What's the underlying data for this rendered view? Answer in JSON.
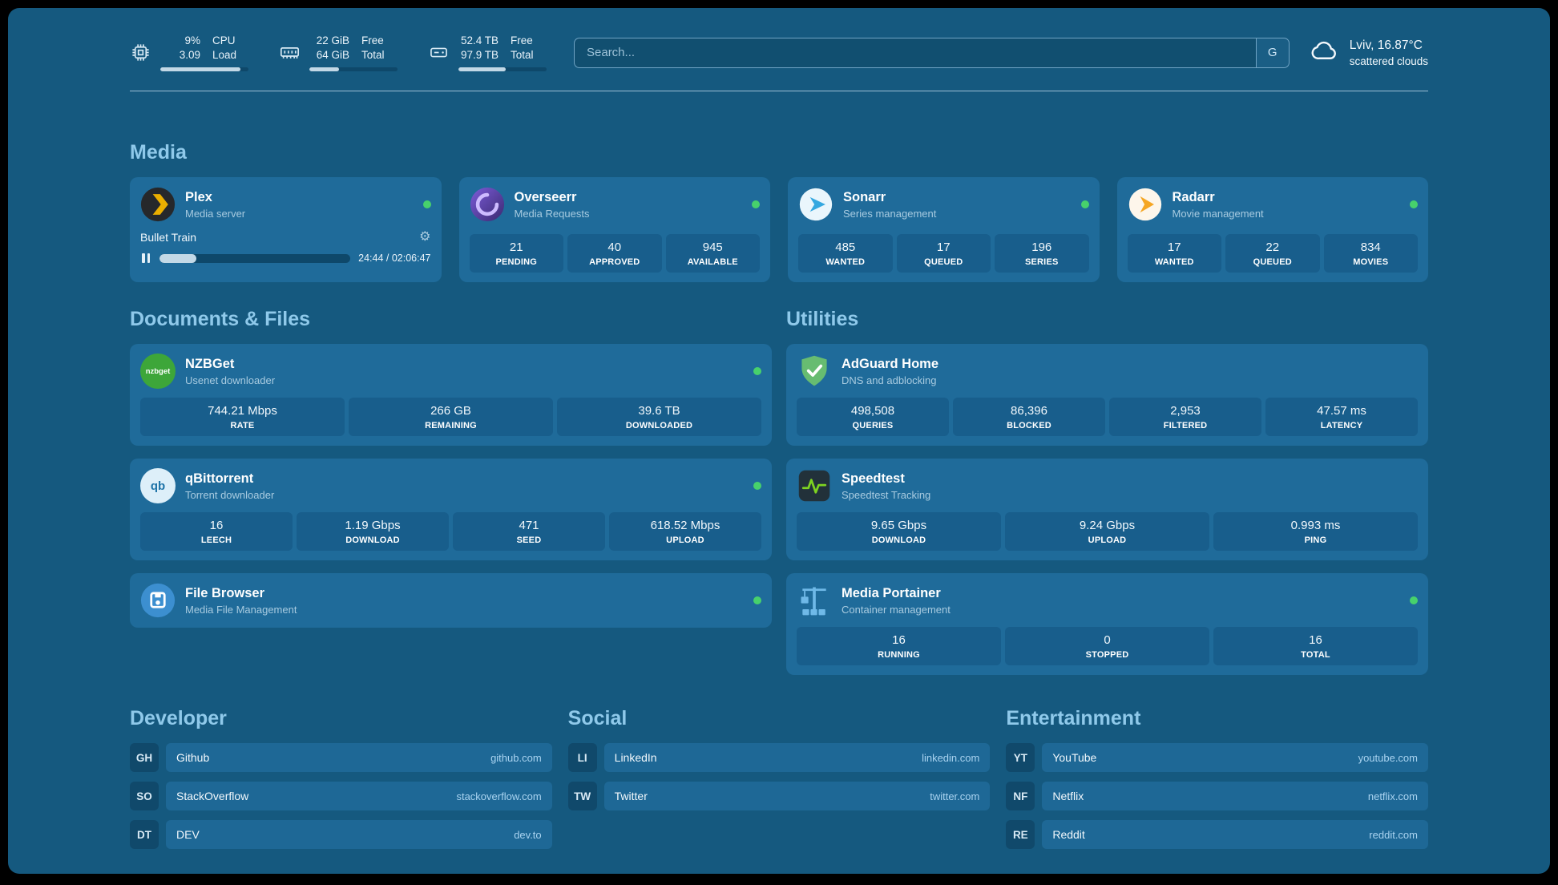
{
  "colors": {
    "background": "#15597F",
    "card": "#1F6B9A",
    "stat_box": "#185E8C",
    "status_online": "#47D16C",
    "section_heading": "#8FC9EA",
    "progress_fill": "#C3D9E7"
  },
  "icons": {
    "gear_glyph": "⚙"
  },
  "topbar": {
    "metrics": [
      {
        "icon": "cpu-chip-icon",
        "line1": "9%",
        "line2": "3.09",
        "label1": "CPU",
        "label2": "Load",
        "percent": 91
      },
      {
        "icon": "memory-icon",
        "line1": "22 GiB",
        "line2": "64 GiB",
        "label1": "Free",
        "label2": "Total",
        "percent": 34
      },
      {
        "icon": "disk-icon",
        "line1": "52.4 TB",
        "line2": "97.9 TB",
        "label1": "Free",
        "label2": "Total",
        "percent": 54
      }
    ],
    "search": {
      "placeholder": "Search...",
      "engine_label": "G"
    },
    "weather": {
      "location": "Lviv, 16.87°C",
      "condition": "scattered clouds"
    }
  },
  "media": {
    "heading": "Media",
    "plex": {
      "title": "Plex",
      "subtitle": "Media server",
      "now_playing": {
        "title": "Bullet Train",
        "time": "24:44 / 02:06:47",
        "progress_percent": 19.5
      }
    },
    "overseerr": {
      "title": "Overseerr",
      "subtitle": "Media Requests",
      "stats": [
        {
          "value": "21",
          "label": "PENDING"
        },
        {
          "value": "40",
          "label": "APPROVED"
        },
        {
          "value": "945",
          "label": "AVAILABLE"
        }
      ]
    },
    "sonarr": {
      "title": "Sonarr",
      "subtitle": "Series management",
      "stats": [
        {
          "value": "485",
          "label": "WANTED"
        },
        {
          "value": "17",
          "label": "QUEUED"
        },
        {
          "value": "196",
          "label": "SERIES"
        }
      ]
    },
    "radarr": {
      "title": "Radarr",
      "subtitle": "Movie management",
      "stats": [
        {
          "value": "17",
          "label": "WANTED"
        },
        {
          "value": "22",
          "label": "QUEUED"
        },
        {
          "value": "834",
          "label": "MOVIES"
        }
      ]
    }
  },
  "documents": {
    "heading": "Documents & Files",
    "nzbget": {
      "title": "NZBGet",
      "subtitle": "Usenet downloader",
      "icon_text": "nzbget",
      "stats": [
        {
          "value": "744.21 Mbps",
          "label": "RATE"
        },
        {
          "value": "266 GB",
          "label": "REMAINING"
        },
        {
          "value": "39.6 TB",
          "label": "DOWNLOADED"
        }
      ]
    },
    "qbittorrent": {
      "title": "qBittorrent",
      "subtitle": "Torrent downloader",
      "icon_text": "qb",
      "stats": [
        {
          "value": "16",
          "label": "LEECH"
        },
        {
          "value": "1.19 Gbps",
          "label": "DOWNLOAD"
        },
        {
          "value": "471",
          "label": "SEED"
        },
        {
          "value": "618.52 Mbps",
          "label": "UPLOAD"
        }
      ]
    },
    "filebrowser": {
      "title": "File Browser",
      "subtitle": "Media File Management"
    }
  },
  "utilities": {
    "heading": "Utilities",
    "adguard": {
      "title": "AdGuard Home",
      "subtitle": "DNS and adblocking",
      "stats": [
        {
          "value": "498,508",
          "label": "QUERIES"
        },
        {
          "value": "86,396",
          "label": "BLOCKED"
        },
        {
          "value": "2,953",
          "label": "FILTERED"
        },
        {
          "value": "47.57 ms",
          "label": "LATENCY"
        }
      ]
    },
    "speedtest": {
      "title": "Speedtest",
      "subtitle": "Speedtest Tracking",
      "stats": [
        {
          "value": "9.65 Gbps",
          "label": "DOWNLOAD"
        },
        {
          "value": "9.24 Gbps",
          "label": "UPLOAD"
        },
        {
          "value": "0.993 ms",
          "label": "PING"
        }
      ]
    },
    "portainer": {
      "title": "Media Portainer",
      "subtitle": "Container management",
      "stats": [
        {
          "value": "16",
          "label": "RUNNING"
        },
        {
          "value": "0",
          "label": "STOPPED"
        },
        {
          "value": "16",
          "label": "TOTAL"
        }
      ]
    }
  },
  "bookmarks": [
    {
      "heading": "Developer",
      "items": [
        {
          "abbr": "GH",
          "name": "Github",
          "domain": "github.com"
        },
        {
          "abbr": "SO",
          "name": "StackOverflow",
          "domain": "stackoverflow.com"
        },
        {
          "abbr": "DT",
          "name": "DEV",
          "domain": "dev.to"
        }
      ]
    },
    {
      "heading": "Social",
      "items": [
        {
          "abbr": "LI",
          "name": "LinkedIn",
          "domain": "linkedin.com"
        },
        {
          "abbr": "TW",
          "name": "Twitter",
          "domain": "twitter.com"
        }
      ]
    },
    {
      "heading": "Entertainment",
      "items": [
        {
          "abbr": "YT",
          "name": "YouTube",
          "domain": "youtube.com"
        },
        {
          "abbr": "NF",
          "name": "Netflix",
          "domain": "netflix.com"
        },
        {
          "abbr": "RE",
          "name": "Reddit",
          "domain": "reddit.com"
        }
      ]
    }
  ]
}
